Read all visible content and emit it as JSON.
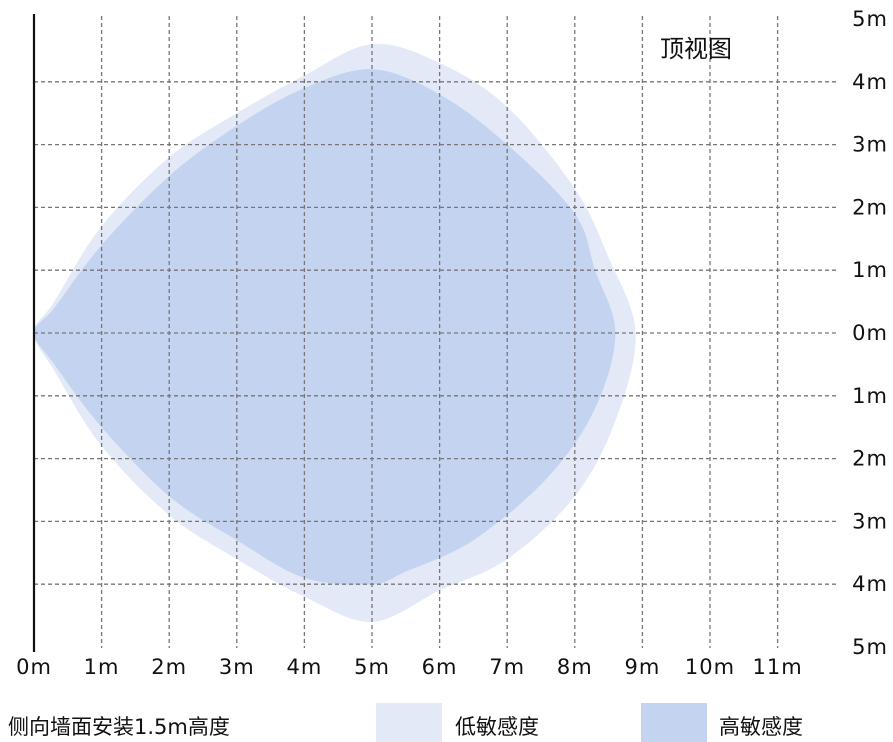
{
  "title": "顶视图",
  "caption": "侧向墙面安装1.5m高度",
  "legend": {
    "low": {
      "label": "低敏感度",
      "color": "#e3e9f7"
    },
    "high": {
      "label": "高敏感度",
      "color": "#c4d4f0"
    }
  },
  "grid": {
    "line_color": "#777777",
    "wall_color": "#111111"
  },
  "x_ticks": [
    "0m",
    "1m",
    "2m",
    "3m",
    "4m",
    "5m",
    "6m",
    "7m",
    "8m",
    "9m",
    "10m",
    "11m"
  ],
  "y_ticks": [
    "5m",
    "4m",
    "3m",
    "2m",
    "1m",
    "0m",
    "1m",
    "2m",
    "3m",
    "4m",
    "5m"
  ],
  "coverage": {
    "low_sensitivity": [
      [
        0,
        0
      ],
      [
        0.3,
        0.5
      ],
      [
        1,
        1.7
      ],
      [
        2,
        2.8
      ],
      [
        3,
        3.5
      ],
      [
        4,
        4.1
      ],
      [
        5,
        4.6
      ],
      [
        6,
        4.3
      ],
      [
        7,
        3.6
      ],
      [
        8,
        2.3
      ],
      [
        8.5,
        1.2
      ],
      [
        8.9,
        0
      ],
      [
        8.6,
        -1.4
      ],
      [
        8,
        -2.6
      ],
      [
        7,
        -3.6
      ],
      [
        6,
        -4.1
      ],
      [
        5,
        -4.6
      ],
      [
        4,
        -4.2
      ],
      [
        3,
        -3.6
      ],
      [
        2,
        -2.9
      ],
      [
        1,
        -1.8
      ],
      [
        0.3,
        -0.6
      ]
    ],
    "high_sensitivity": [
      [
        0,
        0
      ],
      [
        0.3,
        0.4
      ],
      [
        1,
        1.4
      ],
      [
        2,
        2.5
      ],
      [
        3,
        3.3
      ],
      [
        4,
        3.9
      ],
      [
        5,
        4.2
      ],
      [
        6,
        3.8
      ],
      [
        7,
        3
      ],
      [
        8,
        1.9
      ],
      [
        8.3,
        1
      ],
      [
        8.6,
        0
      ],
      [
        8.3,
        -1.2
      ],
      [
        7.6,
        -2.3
      ],
      [
        6.5,
        -3.3
      ],
      [
        5.5,
        -3.8
      ],
      [
        5,
        -4
      ],
      [
        4,
        -3.9
      ],
      [
        3,
        -3.3
      ],
      [
        2,
        -2.6
      ],
      [
        1,
        -1.5
      ],
      [
        0.3,
        -0.5
      ]
    ]
  }
}
